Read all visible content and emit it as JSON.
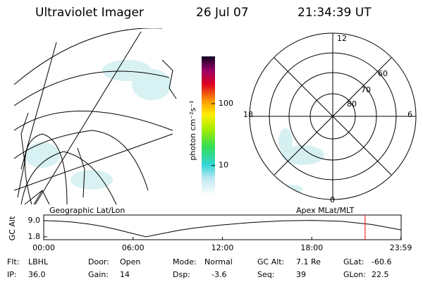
{
  "header": {
    "title": "Ultraviolet Imager",
    "date": "26 Jul 07",
    "time": "21:34:39 UT"
  },
  "geographic_panel": {
    "label": "Geographic Lat/Lon"
  },
  "colorbar": {
    "label": "photon cm⁻²s⁻¹",
    "log": true,
    "range": [
      3.3,
      580
    ],
    "ticks": [
      10,
      100
    ]
  },
  "polar_panel": {
    "label": "Apex MLat/MLT",
    "mlt_labels": {
      "top": "12",
      "left": "18",
      "right": "6",
      "bottom": "0"
    },
    "mlat_labels": [
      "60",
      "70",
      "80"
    ]
  },
  "altitude_plot": {
    "ylabel": "GC Alt",
    "ylim": [
      0.5,
      11.5
    ],
    "yticks": [
      {
        "value": 9,
        "label": "9.0"
      },
      1.8
    ],
    "xlim": [
      0,
      24
    ],
    "xticks": [
      {
        "value": 0,
        "label": "00:00"
      },
      {
        "value": 6,
        "label": "06:00"
      },
      {
        "value": 12,
        "label": "12:00"
      },
      {
        "value": 18,
        "label": "18:00"
      },
      {
        "value": 23.98,
        "label": "23:59"
      }
    ],
    "x": [
      0,
      1,
      2,
      3,
      4,
      5,
      6,
      6.86,
      8,
      9,
      10,
      11,
      12,
      14,
      16,
      18,
      20,
      22,
      23.98
    ],
    "values": [
      9.0,
      8.8,
      8.3,
      7.5,
      6.4,
      4.9,
      3.2,
      1.8,
      3.3,
      4.6,
      5.6,
      6.4,
      7.1,
      8.2,
      8.9,
      9.1,
      8.7,
      7.3,
      4.9
    ],
    "current_time": 21.58,
    "marker_color": "#ff0000"
  },
  "footer": [
    [
      {
        "label": "Flt:",
        "value": "LBHL"
      },
      {
        "label": "Door:",
        "value": "Open"
      },
      {
        "label": "Mode:",
        "value": "Normal"
      },
      {
        "label": "GC Alt:",
        "value": "7.1 Re"
      },
      {
        "label": "GLat:",
        "value": "-60.6"
      }
    ],
    [
      {
        "label": "IP:",
        "value": "36.0"
      },
      {
        "label": "Gain:",
        "value": "14"
      },
      {
        "label": "Dsp:",
        "value": "-3.6"
      },
      {
        "label": "Seq:",
        "value": "39"
      },
      {
        "label": "GLon:",
        "value": "22.5"
      }
    ]
  ]
}
